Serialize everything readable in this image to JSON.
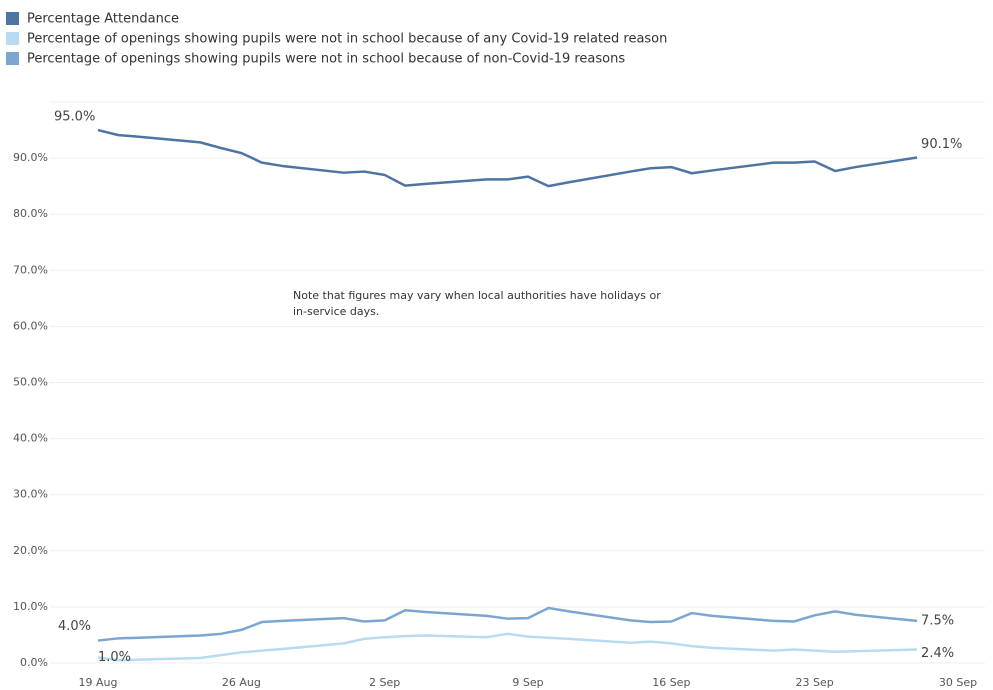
{
  "chart_data": {
    "type": "line",
    "legend": "top-left",
    "annotation": [
      "Note that figures may vary when  local authorities have holidays or",
      "in-service days."
    ],
    "x": [
      "19 Aug",
      "20 Aug",
      "21 Aug",
      "24 Aug",
      "25 Aug",
      "26 Aug",
      "27 Aug",
      "28 Aug",
      "31 Aug",
      "1 Sep",
      "2 Sep",
      "3 Sep",
      "4 Sep",
      "7 Sep",
      "8 Sep",
      "9 Sep",
      "10 Sep",
      "11 Sep",
      "14 Sep",
      "15 Sep",
      "16 Sep",
      "17 Sep",
      "18 Sep",
      "21 Sep",
      "22 Sep",
      "23 Sep",
      "24 Sep",
      "25 Sep",
      "28 Sep"
    ],
    "xlim": [
      "19 Aug",
      "30 Sep"
    ],
    "xticks": [
      "19 Aug",
      "26 Aug",
      "2 Sep",
      "9 Sep",
      "16 Sep",
      "23 Sep",
      "30 Sep"
    ],
    "ylim": [
      0,
      100
    ],
    "yticks": [
      {
        "value": 0,
        "label": "0.0%"
      },
      {
        "value": 10,
        "label": "10.0%"
      },
      {
        "value": 20,
        "label": "20.0%"
      },
      {
        "value": 30,
        "label": "30.0%"
      },
      {
        "value": 40,
        "label": "40.0%"
      },
      {
        "value": 50,
        "label": "50.0%"
      },
      {
        "value": 60,
        "label": "60.0%"
      },
      {
        "value": 70,
        "label": "70.0%"
      },
      {
        "value": 80,
        "label": "80.0%"
      },
      {
        "value": 90,
        "label": "90.0%"
      }
    ],
    "grid": true,
    "series": [
      {
        "name": "Percentage Attendance",
        "color": "#4e74a3",
        "values": [
          95.0,
          94.1,
          93.8,
          92.8,
          91.8,
          90.9,
          89.2,
          88.6,
          87.4,
          87.6,
          87.0,
          85.1,
          85.4,
          86.2,
          86.2,
          86.7,
          85.0,
          85.7,
          87.6,
          88.2,
          88.4,
          87.3,
          87.8,
          89.2,
          89.2,
          89.4,
          87.7,
          88.4,
          90.1
        ],
        "value_labels": [
          "95.0%",
          null,
          null,
          null,
          null,
          null,
          null,
          null,
          null,
          null,
          null,
          null,
          null,
          null,
          null,
          null,
          null,
          null,
          null,
          null,
          null,
          null,
          null,
          null,
          null,
          null,
          null,
          null,
          "90.1%"
        ]
      },
      {
        "name": "Percentage of openings showing pupils were not in school because of any Covid-19 related reason",
        "color": "#b7dcf1",
        "values": [
          1.0,
          0.5,
          0.6,
          0.9,
          1.4,
          1.9,
          2.2,
          2.5,
          3.5,
          4.3,
          4.6,
          4.8,
          4.9,
          4.6,
          5.2,
          4.7,
          4.5,
          4.3,
          3.6,
          3.8,
          3.5,
          3.0,
          2.7,
          2.2,
          2.4,
          2.2,
          2.0,
          2.1,
          2.4
        ],
        "value_labels": [
          "1.0%",
          null,
          null,
          null,
          null,
          null,
          null,
          null,
          null,
          null,
          null,
          null,
          null,
          null,
          null,
          null,
          null,
          null,
          null,
          null,
          null,
          null,
          null,
          null,
          null,
          null,
          null,
          null,
          "2.4%"
        ]
      },
      {
        "name": "Percentage of openings showing pupils were not in school because of non-Covid-19 reasons",
        "color": "#7ca6cf",
        "values": [
          4.0,
          4.4,
          4.5,
          4.9,
          5.2,
          5.9,
          7.3,
          7.5,
          8.0,
          7.4,
          7.6,
          9.4,
          9.1,
          8.4,
          7.9,
          8.0,
          9.8,
          9.2,
          7.6,
          7.3,
          7.4,
          8.9,
          8.4,
          7.5,
          7.4,
          8.5,
          9.2,
          8.6,
          7.5
        ],
        "value_labels": [
          "4.0%",
          null,
          null,
          null,
          null,
          null,
          null,
          null,
          null,
          null,
          null,
          null,
          null,
          null,
          null,
          null,
          null,
          null,
          null,
          null,
          null,
          null,
          null,
          null,
          null,
          null,
          null,
          null,
          "7.5%"
        ]
      }
    ]
  }
}
